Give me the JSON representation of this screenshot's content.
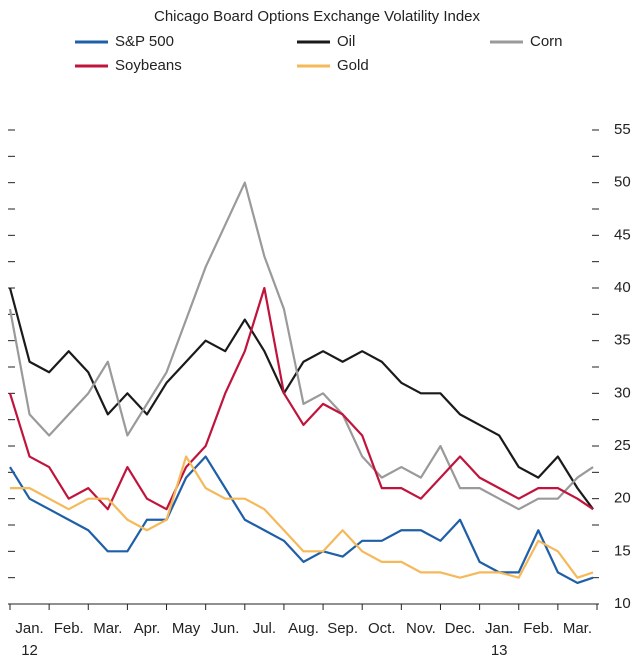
{
  "chart_data": {
    "type": "line",
    "title": "Chicago Board Options Exchange Volatility Index",
    "categories": [
      "Jan.",
      "Feb.",
      "Mar.",
      "Apr.",
      "May",
      "Jun.",
      "Jul.",
      "Aug.",
      "Sep.",
      "Oct.",
      "Nov.",
      "Dec.",
      "Jan.",
      "Feb.",
      "Mar."
    ],
    "year_labels": [
      "12",
      null,
      null,
      null,
      null,
      null,
      null,
      null,
      null,
      null,
      null,
      null,
      "13",
      null,
      null
    ],
    "xlim": [
      0,
      15
    ],
    "x": [
      0,
      0.5,
      1,
      1.5,
      2,
      2.5,
      3,
      3.5,
      4,
      4.5,
      5,
      5.5,
      6,
      6.5,
      7,
      7.5,
      8,
      8.5,
      9,
      9.5,
      10,
      10.5,
      11,
      11.5,
      12,
      12.5,
      13,
      13.5,
      14,
      14.5,
      14.9
    ],
    "ylim": [
      10,
      55
    ],
    "yticks": [
      10,
      15,
      20,
      25,
      30,
      35,
      40,
      45,
      50,
      55
    ],
    "series": [
      {
        "name": "S&P 500",
        "color": "#1f5fa8",
        "values": [
          23,
          20,
          19,
          18,
          17,
          15,
          15,
          18,
          18,
          22,
          24,
          21,
          18,
          17,
          16,
          14,
          15,
          14.5,
          16,
          16,
          17,
          17,
          16,
          18,
          14,
          13,
          13,
          17,
          13,
          12,
          12.5
        ]
      },
      {
        "name": "Oil",
        "color": "#1a1a1a",
        "values": [
          40,
          33,
          32,
          34,
          32,
          28,
          30,
          28,
          31,
          33,
          35,
          34,
          37,
          34,
          30,
          33,
          34,
          33,
          34,
          33,
          31,
          30,
          30,
          28,
          27,
          26,
          23,
          22,
          24,
          21,
          19
        ]
      },
      {
        "name": "Corn",
        "color": "#9a9a9a",
        "values": [
          38,
          28,
          26,
          28,
          30,
          33,
          26,
          29,
          32,
          37,
          42,
          46,
          50,
          43,
          38,
          29,
          30,
          28,
          24,
          22,
          23,
          22,
          25,
          21,
          21,
          20,
          19,
          20,
          20,
          22,
          23
        ]
      },
      {
        "name": "Soybeans",
        "color": "#c0143c",
        "values": [
          30,
          24,
          23,
          20,
          21,
          19,
          23,
          20,
          19,
          23,
          25,
          30,
          34,
          40,
          30,
          27,
          29,
          28,
          26,
          21,
          21,
          20,
          22,
          24,
          22,
          21,
          20,
          21,
          21,
          20,
          19
        ]
      },
      {
        "name": "Gold",
        "color": "#f5b95a",
        "values": [
          21,
          21,
          20,
          19,
          20,
          20,
          18,
          17,
          18,
          24,
          21,
          20,
          20,
          19,
          17,
          15,
          15,
          17,
          15,
          14,
          14,
          13,
          13,
          12.5,
          13,
          13,
          12.5,
          16,
          15,
          12.5,
          13
        ]
      }
    ]
  }
}
